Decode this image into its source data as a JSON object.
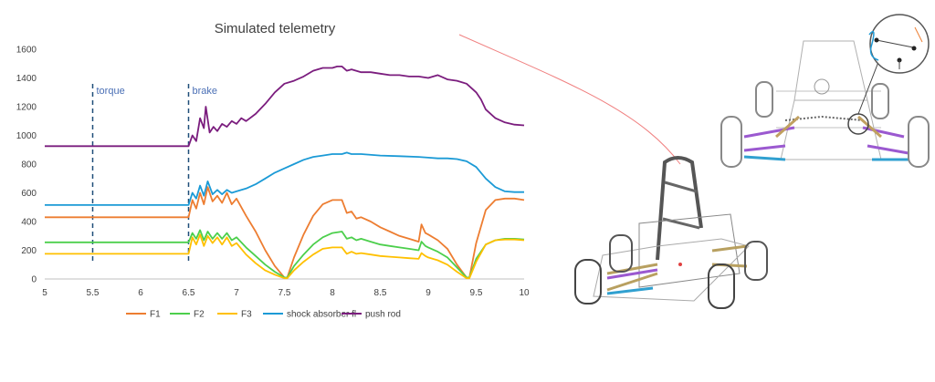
{
  "chart_data": {
    "type": "line",
    "title": "Simulated telemetry",
    "xlabel": "",
    "ylabel": "",
    "xlim": [
      5,
      10
    ],
    "ylim": [
      0,
      1600
    ],
    "x_ticks": [
      "5",
      "5.5",
      "6",
      "6.5",
      "7",
      "7.5",
      "8",
      "8.5",
      "9",
      "9.5",
      "10"
    ],
    "y_ticks": [
      "0",
      "200",
      "400",
      "600",
      "800",
      "1000",
      "1200",
      "1400",
      "1600"
    ],
    "grid": false,
    "legend_position": "bottom",
    "annotations": [
      {
        "label": "torque",
        "x": 5.5
      },
      {
        "label": "brake",
        "x": 6.5
      }
    ],
    "series": [
      {
        "name": "F1",
        "color": "#ed7d31",
        "x": [
          5,
          6.5,
          6.54,
          6.58,
          6.62,
          6.66,
          6.7,
          6.75,
          6.8,
          6.85,
          6.9,
          6.95,
          7.0,
          7.1,
          7.2,
          7.3,
          7.4,
          7.5,
          7.53,
          7.6,
          7.7,
          7.8,
          7.9,
          8.0,
          8.1,
          8.15,
          8.2,
          8.25,
          8.3,
          8.4,
          8.5,
          8.6,
          8.7,
          8.8,
          8.9,
          8.93,
          8.97,
          9.0,
          9.1,
          9.2,
          9.3,
          9.4,
          9.43,
          9.5,
          9.6,
          9.7,
          9.8,
          9.9,
          10
        ],
        "y": [
          430,
          430,
          550,
          490,
          600,
          520,
          640,
          540,
          580,
          530,
          600,
          520,
          560,
          440,
          330,
          200,
          90,
          10,
          10,
          150,
          310,
          440,
          520,
          550,
          550,
          460,
          470,
          420,
          430,
          400,
          360,
          330,
          300,
          280,
          260,
          380,
          320,
          310,
          270,
          210,
          100,
          10,
          10,
          250,
          480,
          550,
          560,
          560,
          550
        ]
      },
      {
        "name": "F2",
        "color": "#4ccf4c",
        "x": [
          5,
          6.5,
          6.54,
          6.58,
          6.62,
          6.66,
          6.7,
          6.75,
          6.8,
          6.85,
          6.9,
          6.95,
          7.0,
          7.1,
          7.2,
          7.3,
          7.4,
          7.5,
          7.53,
          7.6,
          7.7,
          7.8,
          7.9,
          8.0,
          8.1,
          8.15,
          8.2,
          8.25,
          8.3,
          8.4,
          8.5,
          8.6,
          8.7,
          8.8,
          8.9,
          8.93,
          8.97,
          9.0,
          9.1,
          9.2,
          9.3,
          9.4,
          9.43,
          9.5,
          9.6,
          9.7,
          9.8,
          9.9,
          10
        ],
        "y": [
          255,
          255,
          320,
          280,
          340,
          270,
          330,
          280,
          320,
          280,
          320,
          270,
          290,
          220,
          160,
          100,
          50,
          10,
          10,
          90,
          170,
          240,
          290,
          320,
          330,
          280,
          290,
          270,
          280,
          260,
          240,
          230,
          220,
          210,
          200,
          260,
          230,
          220,
          190,
          150,
          80,
          10,
          10,
          140,
          240,
          270,
          280,
          280,
          275
        ]
      },
      {
        "name": "F3",
        "color": "#ffc000",
        "x": [
          5,
          6.5,
          6.54,
          6.58,
          6.62,
          6.66,
          6.7,
          6.75,
          6.8,
          6.85,
          6.9,
          6.95,
          7.0,
          7.1,
          7.2,
          7.3,
          7.4,
          7.5,
          7.53,
          7.6,
          7.7,
          7.8,
          7.9,
          8.0,
          8.1,
          8.15,
          8.2,
          8.25,
          8.3,
          8.4,
          8.5,
          8.6,
          8.7,
          8.8,
          8.9,
          8.93,
          8.97,
          9.0,
          9.1,
          9.2,
          9.3,
          9.4,
          9.43,
          9.5,
          9.6,
          9.7,
          9.8,
          9.9,
          10
        ],
        "y": [
          175,
          175,
          290,
          240,
          310,
          230,
          300,
          250,
          290,
          240,
          290,
          230,
          250,
          170,
          110,
          60,
          30,
          5,
          5,
          60,
          120,
          170,
          210,
          220,
          220,
          175,
          190,
          175,
          180,
          170,
          160,
          155,
          150,
          145,
          140,
          180,
          160,
          150,
          130,
          100,
          50,
          5,
          5,
          120,
          240,
          270,
          275,
          275,
          270
        ]
      },
      {
        "name": "shock absorber fl",
        "color": "#1b9ad6",
        "x": [
          5,
          6.5,
          6.54,
          6.58,
          6.62,
          6.66,
          6.7,
          6.75,
          6.8,
          6.85,
          6.9,
          6.95,
          7.0,
          7.1,
          7.2,
          7.3,
          7.4,
          7.5,
          7.6,
          7.7,
          7.8,
          7.9,
          8.0,
          8.1,
          8.15,
          8.2,
          8.3,
          8.5,
          8.7,
          8.9,
          9.0,
          9.1,
          9.2,
          9.3,
          9.4,
          9.5,
          9.6,
          9.7,
          9.8,
          9.9,
          10
        ],
        "y": [
          515,
          515,
          600,
          560,
          650,
          580,
          680,
          590,
          620,
          590,
          620,
          600,
          610,
          630,
          660,
          700,
          740,
          770,
          800,
          830,
          850,
          860,
          870,
          870,
          880,
          870,
          870,
          860,
          855,
          850,
          845,
          840,
          840,
          835,
          820,
          780,
          700,
          640,
          610,
          605,
          605
        ]
      },
      {
        "name": "push rod",
        "color": "#7b1d7e",
        "x": [
          5,
          6.5,
          6.54,
          6.58,
          6.62,
          6.66,
          6.68,
          6.72,
          6.76,
          6.8,
          6.85,
          6.9,
          6.95,
          7.0,
          7.05,
          7.1,
          7.2,
          7.3,
          7.4,
          7.5,
          7.6,
          7.7,
          7.8,
          7.9,
          8.0,
          8.05,
          8.1,
          8.15,
          8.2,
          8.3,
          8.4,
          8.5,
          8.6,
          8.7,
          8.8,
          8.9,
          9.0,
          9.1,
          9.2,
          9.3,
          9.4,
          9.5,
          9.55,
          9.6,
          9.7,
          9.8,
          9.9,
          10
        ],
        "y": [
          925,
          925,
          1000,
          960,
          1120,
          1050,
          1200,
          1020,
          1060,
          1030,
          1080,
          1060,
          1100,
          1080,
          1120,
          1100,
          1150,
          1220,
          1300,
          1360,
          1380,
          1410,
          1450,
          1470,
          1470,
          1480,
          1480,
          1450,
          1460,
          1440,
          1440,
          1430,
          1420,
          1420,
          1410,
          1410,
          1400,
          1420,
          1390,
          1380,
          1360,
          1300,
          1250,
          1180,
          1120,
          1090,
          1075,
          1070
        ]
      }
    ]
  }
}
